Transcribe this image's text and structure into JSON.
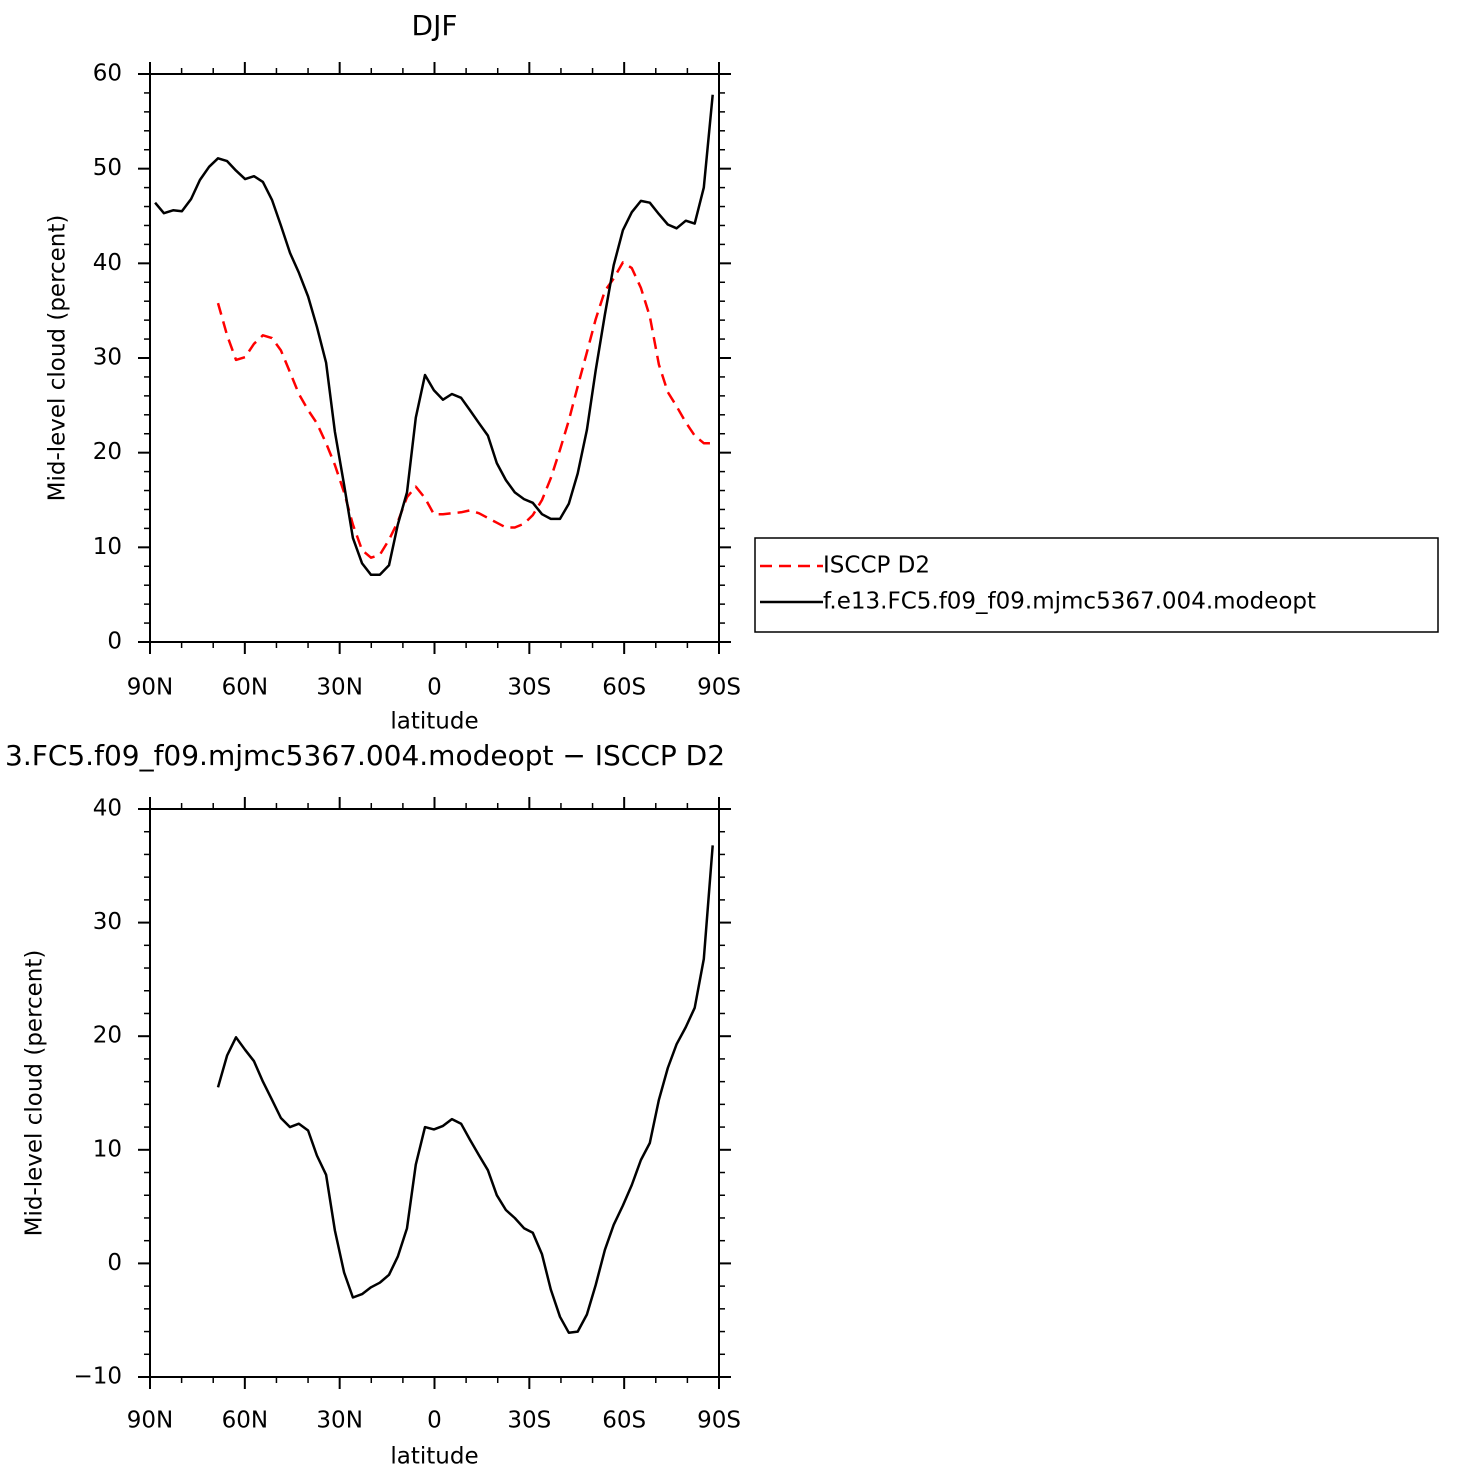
{
  "chart_data": [
    {
      "type": "line",
      "title": "DJF",
      "xlabel": "latitude",
      "ylabel": "Mid-level cloud (percent)",
      "x": [
        88.4,
        85.6,
        82.7,
        79.9,
        77.0,
        74.2,
        71.3,
        68.5,
        65.6,
        62.8,
        59.9,
        57.1,
        54.3,
        51.4,
        48.6,
        45.7,
        42.9,
        40.0,
        37.2,
        34.3,
        31.5,
        28.6,
        25.8,
        22.9,
        20.1,
        17.3,
        14.4,
        11.6,
        8.7,
        5.9,
        3.0,
        0.2,
        -2.7,
        -5.5,
        -8.4,
        -11.2,
        -14.1,
        -16.9,
        -19.7,
        -22.6,
        -25.4,
        -28.3,
        -31.1,
        -34.0,
        -36.8,
        -39.7,
        -42.5,
        -45.3,
        -48.2,
        -51.0,
        -53.9,
        -56.7,
        -59.6,
        -62.4,
        -65.3,
        -68.1,
        -71.0,
        -73.8,
        -76.6,
        -79.5,
        -82.3,
        -85.2,
        -88.0
      ],
      "series": [
        {
          "name": "ISCCP D2",
          "color": "#ff0000",
          "dashed": true,
          "values": [
            null,
            null,
            null,
            null,
            null,
            null,
            null,
            35.8,
            32.4,
            29.8,
            30.1,
            31.5,
            32.4,
            32.1,
            30.8,
            28.5,
            26.2,
            24.5,
            23.1,
            21.0,
            18.7,
            15.8,
            12.4,
            9.7,
            8.9,
            9.2,
            10.8,
            12.7,
            15.3,
            16.4,
            15.2,
            13.5,
            13.5,
            13.6,
            13.7,
            13.9,
            13.6,
            13.1,
            12.6,
            12.1,
            12.1,
            12.5,
            13.4,
            15.0,
            17.3,
            20.3,
            23.4,
            27.0,
            30.6,
            34.1,
            37.1,
            38.4,
            40.1,
            39.5,
            37.4,
            34.4,
            29.3,
            26.4,
            24.9,
            23.2,
            21.8,
            21.0,
            21.0
          ]
        },
        {
          "name": "f.e13.FC5.f09_f09.mjmc5367.004.modeopt",
          "color": "#000000",
          "dashed": false,
          "values": [
            46.4,
            45.3,
            45.6,
            45.5,
            46.8,
            48.8,
            50.2,
            51.1,
            50.8,
            49.8,
            48.9,
            49.2,
            48.6,
            46.7,
            44.0,
            41.1,
            39.0,
            36.5,
            33.3,
            29.5,
            22.2,
            16.6,
            11.0,
            8.3,
            7.1,
            7.1,
            8.1,
            12.4,
            15.8,
            23.7,
            28.2,
            26.6,
            25.6,
            26.2,
            25.8,
            24.5,
            23.1,
            21.8,
            18.9,
            17.1,
            15.8,
            15.1,
            14.7,
            13.5,
            13.0,
            13.0,
            14.6,
            17.8,
            22.4,
            28.7,
            34.6,
            39.8,
            43.5,
            45.4,
            46.6,
            46.4,
            45.2,
            44.1,
            43.7,
            44.5,
            44.2,
            48.0,
            57.8
          ]
        }
      ],
      "xlim": [
        90,
        -90
      ],
      "xticks": [
        {
          "value": 90,
          "label": "90N"
        },
        {
          "value": 60,
          "label": "60N"
        },
        {
          "value": 30,
          "label": "30N"
        },
        0,
        {
          "value": -30,
          "label": "30S"
        },
        {
          "value": -60,
          "label": "60S"
        },
        {
          "value": -90,
          "label": "90S"
        }
      ],
      "xminorticks": [
        80,
        70,
        50,
        40,
        20,
        10,
        -10,
        -20,
        -40,
        -50,
        -70,
        -80
      ],
      "ylim": [
        0,
        60
      ],
      "yticks": [
        0,
        10,
        20,
        30,
        40,
        50,
        60
      ],
      "yminorticks": [
        2,
        4,
        6,
        8,
        12,
        14,
        16,
        18,
        22,
        24,
        26,
        28,
        32,
        34,
        36,
        38,
        42,
        44,
        46,
        48,
        52,
        54,
        56,
        58
      ],
      "legend": "right"
    },
    {
      "type": "line",
      "title": "3.FC5.f09_f09.mjmc5367.004.modeopt − ISCCP D2",
      "xlabel": "latitude",
      "ylabel": "Mid-level cloud (percent)",
      "x": [
        88.4,
        85.6,
        82.7,
        79.9,
        77.0,
        74.2,
        71.3,
        68.5,
        65.6,
        62.8,
        59.9,
        57.1,
        54.3,
        51.4,
        48.6,
        45.7,
        42.9,
        40.0,
        37.2,
        34.3,
        31.5,
        28.6,
        25.8,
        22.9,
        20.1,
        17.3,
        14.4,
        11.6,
        8.7,
        5.9,
        3.0,
        0.2,
        -2.7,
        -5.5,
        -8.4,
        -11.2,
        -14.1,
        -16.9,
        -19.7,
        -22.6,
        -25.4,
        -28.3,
        -31.1,
        -34.0,
        -36.8,
        -39.7,
        -42.5,
        -45.3,
        -48.2,
        -51.0,
        -53.9,
        -56.7,
        -59.6,
        -62.4,
        -65.3,
        -68.1,
        -71.0,
        -73.8,
        -76.6,
        -79.5,
        -82.3,
        -85.2,
        -88.0
      ],
      "series": [
        {
          "color": "#000000",
          "dashed": false,
          "values": [
            null,
            null,
            null,
            null,
            null,
            null,
            null,
            15.5,
            18.3,
            19.9,
            18.8,
            17.8,
            16.0,
            14.4,
            12.8,
            12.0,
            12.3,
            11.7,
            9.5,
            7.8,
            2.9,
            -0.8,
            -3.0,
            -2.7,
            -2.1,
            -1.7,
            -1.0,
            0.6,
            3.1,
            8.7,
            12.0,
            11.8,
            12.1,
            12.7,
            12.3,
            10.9,
            9.5,
            8.2,
            6.0,
            4.7,
            4.0,
            3.1,
            2.7,
            0.8,
            -2.3,
            -4.7,
            -6.1,
            -6.0,
            -4.5,
            -1.9,
            1.2,
            3.4,
            5.1,
            6.9,
            9.1,
            10.6,
            14.4,
            17.2,
            19.3,
            20.8,
            22.5,
            26.8,
            36.8
          ]
        }
      ],
      "xlim": [
        90,
        -90
      ],
      "xticks": [
        {
          "value": 90,
          "label": "90N"
        },
        {
          "value": 60,
          "label": "60N"
        },
        {
          "value": 30,
          "label": "30N"
        },
        0,
        {
          "value": -30,
          "label": "30S"
        },
        {
          "value": -60,
          "label": "60S"
        },
        {
          "value": -90,
          "label": "90S"
        }
      ],
      "xminorticks": [
        80,
        70,
        50,
        40,
        20,
        10,
        -10,
        -20,
        -40,
        -50,
        -70,
        -80
      ],
      "ylim": [
        -10,
        40
      ],
      "yticks": [
        {
          "value": -10,
          "label": "−10"
        },
        0,
        10,
        20,
        30,
        40
      ],
      "yminorticks": [
        -8,
        -6,
        -4,
        -2,
        2,
        4,
        6,
        8,
        12,
        14,
        16,
        18,
        22,
        24,
        26,
        28,
        32,
        34,
        36,
        38
      ]
    }
  ]
}
